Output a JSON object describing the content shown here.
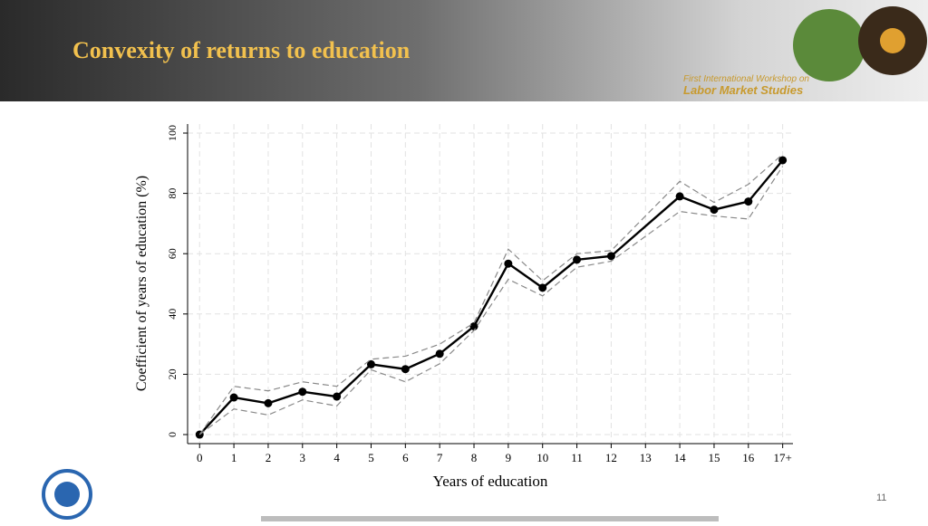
{
  "header": {
    "title": "Convexity of returns to education",
    "banner_line1": "First International Workshop on",
    "banner_line2": "Labor Market Studies"
  },
  "page_number": "11",
  "chart_data": {
    "type": "line",
    "x_label": "Years of education",
    "y_label": "Coefficient of years of education (%)",
    "x": [
      0,
      1,
      2,
      3,
      4,
      5,
      6,
      7,
      8,
      9,
      10,
      11,
      12,
      14,
      15,
      16,
      17
    ],
    "series": [
      {
        "color": "#000000",
        "style": "solid",
        "markers": true,
        "values": [
          0,
          12.3,
          10.4,
          14.2,
          12.6,
          23.3,
          21.7,
          26.8,
          35.9,
          56.7,
          48.7,
          58,
          59.2,
          79,
          74.6,
          77.3,
          91
        ]
      },
      {
        "color": "#888888",
        "style": "dashed",
        "markers": false,
        "values": [
          0,
          16,
          14.5,
          17.5,
          16,
          25,
          26,
          30,
          37,
          61.5,
          51,
          60,
          61,
          84,
          77,
          83,
          93
        ]
      },
      {
        "color": "#888888",
        "style": "dashed",
        "markers": false,
        "values": [
          0,
          8.5,
          6.5,
          11.5,
          9.5,
          21.5,
          17.5,
          23.5,
          34.5,
          51.5,
          46,
          55.5,
          57.5,
          74,
          72.5,
          71.5,
          89
        ]
      }
    ],
    "xlim": [
      -0.35,
      17.3
    ],
    "ylim": [
      -3,
      103
    ],
    "xticks": [
      0,
      1,
      2,
      3,
      4,
      5,
      6,
      7,
      8,
      9,
      10,
      11,
      12,
      13,
      14,
      15,
      16,
      {
        "value": 17,
        "label": "17+"
      }
    ],
    "yticks": [
      0,
      20,
      40,
      60,
      80,
      100
    ],
    "grid": true
  }
}
